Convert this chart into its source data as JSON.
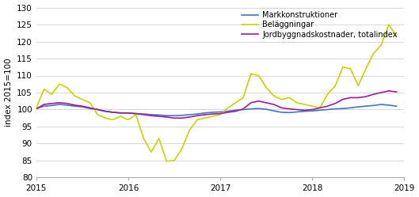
{
  "title": "",
  "ylabel": "index 2015=100",
  "xlim_start": 2015.0,
  "xlim_end": 2019.0,
  "ylim": [
    80,
    130
  ],
  "yticks": [
    80,
    85,
    90,
    95,
    100,
    105,
    110,
    115,
    120,
    125,
    130
  ],
  "xticks": [
    2015,
    2016,
    2017,
    2018,
    2019
  ],
  "bg_color": "#ffffff",
  "grid_color": "#d0d0d0",
  "markkonstruktioner_color": "#4472c4",
  "belaggningar_color": "#c8d400",
  "totalindex_color": "#9b1b9e",
  "markkonstruktioner": [
    100.3,
    101.0,
    101.2,
    101.5,
    101.3,
    101.0,
    100.8,
    100.3,
    100.0,
    99.5,
    99.2,
    99.0,
    99.0,
    98.8,
    98.7,
    98.5,
    98.4,
    98.2,
    98.2,
    98.3,
    98.5,
    98.7,
    99.0,
    99.2,
    99.3,
    99.5,
    99.8,
    100.0,
    100.2,
    100.3,
    100.1,
    99.6,
    99.2,
    99.1,
    99.3,
    99.5,
    99.6,
    99.8,
    100.0,
    100.2,
    100.3,
    100.5,
    100.8,
    101.0,
    101.2,
    101.5,
    101.3,
    101.0
  ],
  "belaggningar": [
    100.5,
    106.0,
    104.5,
    107.5,
    106.5,
    104.0,
    103.0,
    102.0,
    98.5,
    97.5,
    97.0,
    98.0,
    97.0,
    98.5,
    91.5,
    87.5,
    91.5,
    84.8,
    85.0,
    88.5,
    94.0,
    97.0,
    97.5,
    98.0,
    98.5,
    100.5,
    102.0,
    103.5,
    110.5,
    110.0,
    106.5,
    104.0,
    103.0,
    103.5,
    102.0,
    101.5,
    101.0,
    100.5,
    104.5,
    107.0,
    112.5,
    112.0,
    107.0,
    112.0,
    116.5,
    119.0,
    125.0,
    121.5
  ],
  "totalindex": [
    100.2,
    101.5,
    101.8,
    102.0,
    101.8,
    101.3,
    101.0,
    100.5,
    100.0,
    99.5,
    99.2,
    99.0,
    99.0,
    98.8,
    98.5,
    98.2,
    98.0,
    97.8,
    97.5,
    97.5,
    97.8,
    98.2,
    98.5,
    98.7,
    98.8,
    99.2,
    99.5,
    100.2,
    102.0,
    102.5,
    102.0,
    101.5,
    100.5,
    100.2,
    100.0,
    99.8,
    100.0,
    100.5,
    101.0,
    101.8,
    103.0,
    103.5,
    103.5,
    103.8,
    104.5,
    105.0,
    105.5,
    105.2
  ],
  "legend_labels": [
    "Markkonstruktioner",
    "Beläggningar",
    "Jordbyggnadskostnader, totalindex"
  ],
  "line_width": 1.2,
  "tick_fontsize": 7.5,
  "ylabel_fontsize": 7.5,
  "legend_fontsize": 7.0
}
